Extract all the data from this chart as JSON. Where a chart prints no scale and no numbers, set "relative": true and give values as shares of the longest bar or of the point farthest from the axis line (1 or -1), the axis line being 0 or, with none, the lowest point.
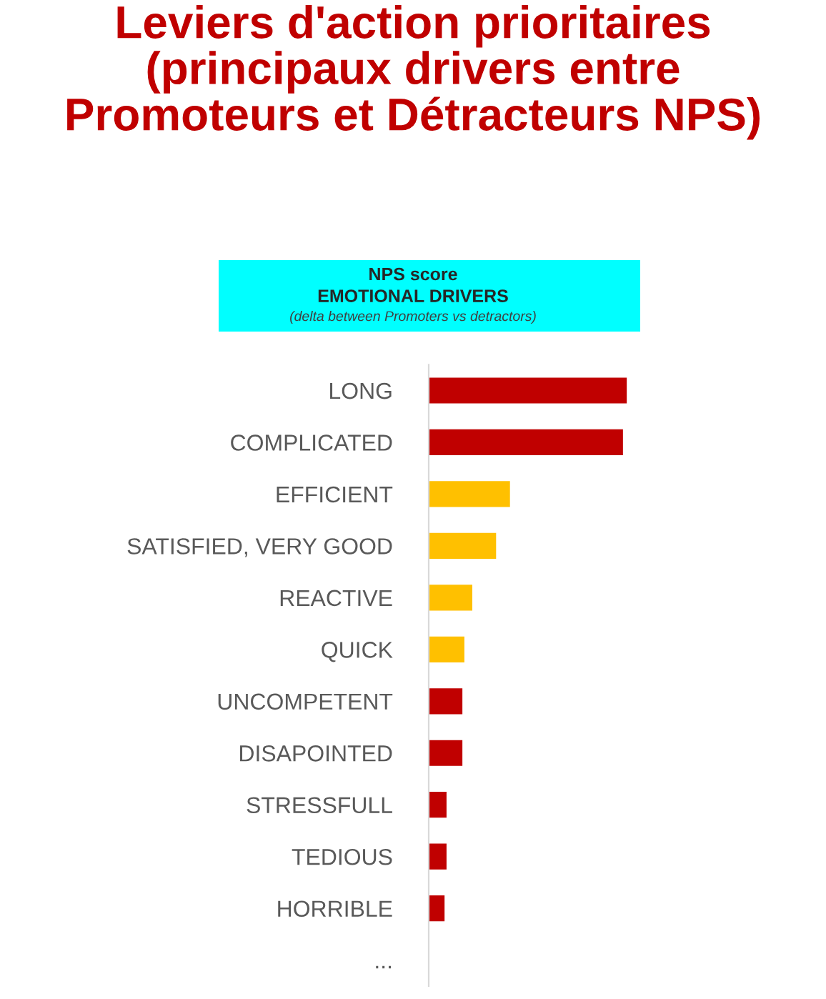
{
  "chart_data": {
    "type": "bar",
    "orientation": "horizontal",
    "relative": true,
    "title": "Leviers d'action prioritaires\n(principaux drivers entre\nPromoteurs et Détracteurs NPS)",
    "subtitle": "NPS score\nEMOTIONAL DRIVERS",
    "annotations": [
      "(delta between Promoters vs detractors)"
    ],
    "categories": [
      "LONG",
      "COMPLICATED",
      "EFFICIENT",
      "SATISFIED, VERY GOOD",
      "REACTIVE",
      "QUICK",
      "UNCOMPETENT",
      "DISAPOINTED",
      "STRESSFULL",
      "TEDIOUS",
      "HORRIBLE",
      "..."
    ],
    "values": [
      1,
      0.98,
      0.41,
      0.34,
      0.22,
      0.18,
      0.17,
      0.17,
      0.09,
      0.09,
      0.08,
      null
    ],
    "colors": [
      "#c00000",
      "#c00000",
      "#ffc000",
      "#ffc000",
      "#ffc000",
      "#ffc000",
      "#c00000",
      "#c00000",
      "#c00000",
      "#c00000",
      "#c00000",
      "#c00000"
    ],
    "grid": false,
    "legend": false
  }
}
